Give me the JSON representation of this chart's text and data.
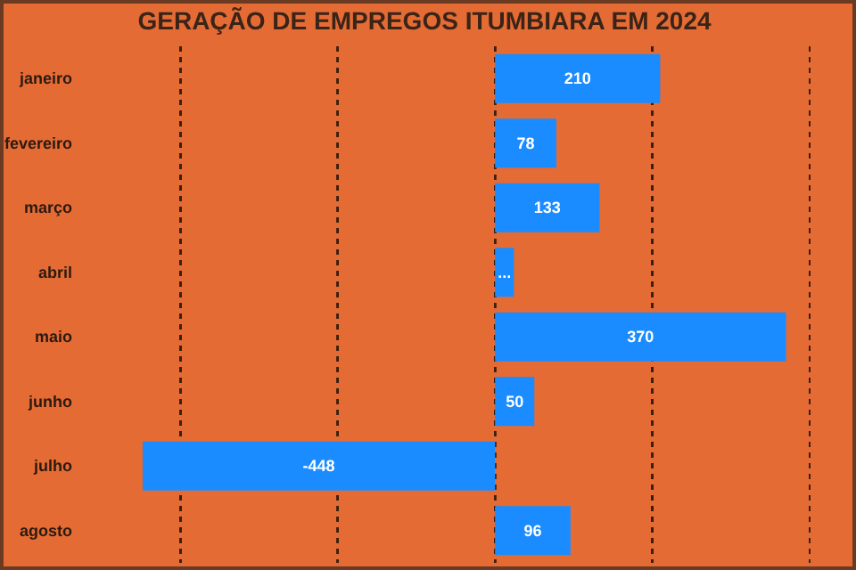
{
  "chart_data": {
    "type": "bar",
    "orientation": "horizontal",
    "title": "GERAÇÃO DE EMPREGOS ITUMBIARA EM 2024",
    "categories": [
      "janeiro",
      "fevereiro",
      "março",
      "abril",
      "maio",
      "junho",
      "julho",
      "agosto"
    ],
    "values": [
      210,
      78,
      133,
      24,
      370,
      50,
      -448,
      96
    ],
    "value_labels": [
      "210",
      "78",
      "133",
      "...",
      "370",
      "50",
      "-448",
      "96"
    ],
    "color": "#1a8cff",
    "ref_lines": [
      {
        "axis": "x",
        "value": -400,
        "color": "#3a2010",
        "line_style": "dashed"
      },
      {
        "axis": "x",
        "value": -200,
        "color": "#3a2010",
        "line_style": "dashed"
      },
      {
        "axis": "x",
        "value": 0,
        "color": "#3a2010",
        "line_style": "dashed"
      },
      {
        "axis": "x",
        "value": 200,
        "color": "#3a2010",
        "line_style": "dashed"
      },
      {
        "axis": "x",
        "value": 400,
        "color": "#3a2010",
        "line_style": "dashed"
      }
    ],
    "tick_labels": "y"
  }
}
